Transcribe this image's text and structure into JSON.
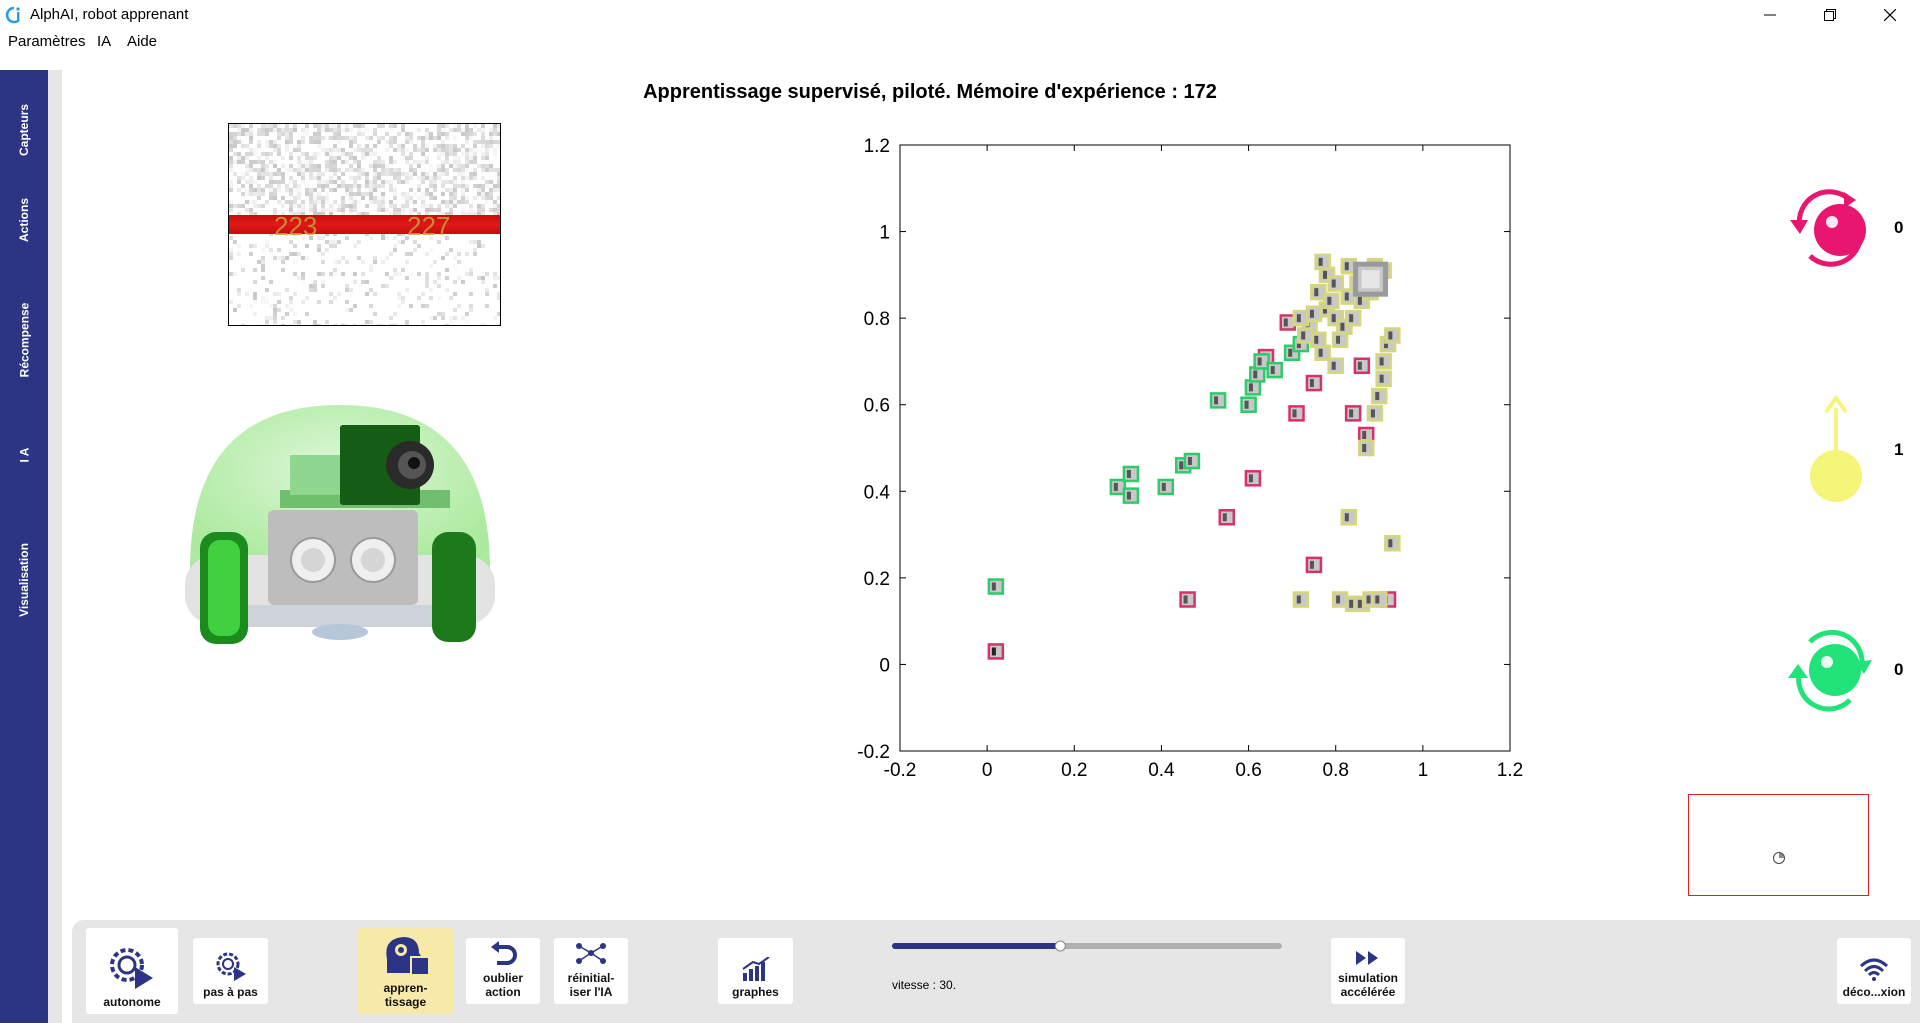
{
  "window": {
    "title": "AlphAI, robot apprenant"
  },
  "menu": [
    "Paramètres",
    "IA",
    "Aide"
  ],
  "sidebar": {
    "tabs": [
      "Capteurs",
      "Actions",
      "Récompense",
      "I A",
      "Visualisation"
    ]
  },
  "main": {
    "title": "Apprentissage supervisé, piloté. Mémoire d'expérience : 172"
  },
  "camera": {
    "labels": [
      "223",
      "227"
    ]
  },
  "actions": {
    "values": [
      "0",
      "1",
      "0"
    ],
    "icons": [
      "turn-left-icon",
      "forward-icon",
      "turn-right-icon"
    ],
    "colors": [
      "#e8166e",
      "#f5f57a",
      "#22e27a"
    ]
  },
  "chart_data": {
    "type": "scatter",
    "title": "",
    "xlabel": "",
    "ylabel": "",
    "xlim": [
      -0.2,
      1.2
    ],
    "ylim": [
      -0.2,
      1.2
    ],
    "xticks": [
      "-0.2",
      "0",
      "0.2",
      "0.4",
      "0.6",
      "0.8",
      "1",
      "1.2"
    ],
    "yticks": [
      "-0.2",
      "0",
      "0.2",
      "0.4",
      "0.6",
      "0.8",
      "1",
      "1.2"
    ],
    "grid": false,
    "series": [
      {
        "color": "#d8306a",
        "points": [
          [
            0.02,
            0.03
          ],
          [
            0.46,
            0.15
          ],
          [
            0.55,
            0.34
          ],
          [
            0.61,
            0.43
          ],
          [
            0.71,
            0.58
          ],
          [
            0.75,
            0.65
          ],
          [
            0.75,
            0.23
          ],
          [
            0.69,
            0.79
          ],
          [
            0.64,
            0.71
          ],
          [
            0.86,
            0.69
          ],
          [
            0.84,
            0.58
          ],
          [
            0.87,
            0.53
          ],
          [
            0.92,
            0.15
          ]
        ]
      },
      {
        "color": "#2ecb6b",
        "points": [
          [
            0.02,
            0.18
          ],
          [
            0.3,
            0.41
          ],
          [
            0.33,
            0.39
          ],
          [
            0.33,
            0.44
          ],
          [
            0.41,
            0.41
          ],
          [
            0.45,
            0.46
          ],
          [
            0.47,
            0.47
          ],
          [
            0.53,
            0.61
          ],
          [
            0.6,
            0.6
          ],
          [
            0.61,
            0.64
          ],
          [
            0.62,
            0.67
          ],
          [
            0.63,
            0.7
          ],
          [
            0.66,
            0.68
          ],
          [
            0.7,
            0.72
          ],
          [
            0.72,
            0.74
          ]
        ]
      },
      {
        "color": "#d6d67a",
        "points": [
          [
            0.72,
            0.15
          ],
          [
            0.81,
            0.15
          ],
          [
            0.84,
            0.14
          ],
          [
            0.86,
            0.14
          ],
          [
            0.88,
            0.15
          ],
          [
            0.9,
            0.15
          ],
          [
            0.83,
            0.34
          ],
          [
            0.93,
            0.28
          ],
          [
            0.87,
            0.5
          ],
          [
            0.89,
            0.58
          ],
          [
            0.9,
            0.62
          ],
          [
            0.91,
            0.66
          ],
          [
            0.91,
            0.7
          ],
          [
            0.92,
            0.74
          ],
          [
            0.93,
            0.76
          ],
          [
            0.8,
            0.69
          ],
          [
            0.77,
            0.72
          ],
          [
            0.76,
            0.75
          ],
          [
            0.74,
            0.78
          ],
          [
            0.72,
            0.8
          ],
          [
            0.78,
            0.82
          ],
          [
            0.8,
            0.8
          ],
          [
            0.82,
            0.78
          ],
          [
            0.76,
            0.86
          ],
          [
            0.78,
            0.9
          ],
          [
            0.8,
            0.88
          ],
          [
            0.83,
            0.85
          ],
          [
            0.85,
            0.88
          ],
          [
            0.87,
            0.9
          ],
          [
            0.89,
            0.92
          ],
          [
            0.91,
            0.91
          ],
          [
            0.77,
            0.93
          ],
          [
            0.79,
            0.84
          ],
          [
            0.83,
            0.92
          ],
          [
            0.86,
            0.84
          ],
          [
            0.75,
            0.81
          ],
          [
            0.73,
            0.76
          ],
          [
            0.81,
            0.75
          ],
          [
            0.84,
            0.8
          ],
          [
            0.88,
            0.86
          ]
        ]
      },
      {
        "color": "#9a9a9a",
        "points": [
          [
            0.88,
            0.89
          ]
        ]
      }
    ]
  },
  "toolbar": {
    "autonome": "autonome",
    "pas_a_pas": "pas à pas",
    "apprentissage_1": "appren-",
    "apprentissage_2": "tissage",
    "oublier_1": "oublier",
    "oublier_2": "action",
    "reinit_1": "réinitial-",
    "reinit_2": "iser l'IA",
    "graphes": "graphes",
    "vitesse": "vitesse : 30.",
    "speed_fraction": 0.43,
    "simulation_1": "simulation",
    "simulation_2": "accélérée",
    "deconnexion": "déco...xion"
  }
}
